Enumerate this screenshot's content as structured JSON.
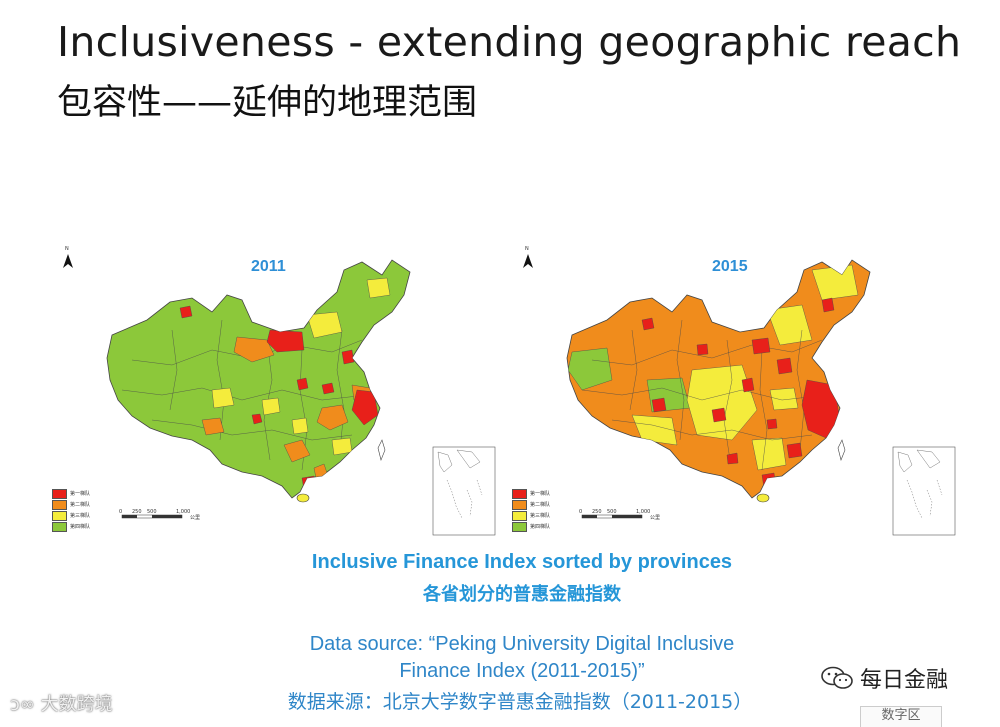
{
  "title": {
    "en": "Inclusiveness - extending geographic reach",
    "cn": "包容性——延伸的地理范围"
  },
  "maps": [
    {
      "year": "2011",
      "palette": {
        "tier1": "#e8201a",
        "tier2": "#f08c1c",
        "tier3": "#f4ec3c",
        "tier4": "#8cc83a"
      },
      "base_tier": "tier4",
      "description_levels": "mostly fourth tier (green), few first-tier (red) in east coast"
    },
    {
      "year": "2015",
      "palette": {
        "tier1": "#e8201a",
        "tier2": "#f08c1c",
        "tier3": "#f4ec3c",
        "tier4": "#8cc83a"
      },
      "base_tier": "tier2",
      "description_levels": "mostly second/third tier, many first-tier in east"
    }
  ],
  "legend": [
    {
      "color": "#e8201a",
      "label": "第一梯队"
    },
    {
      "color": "#f08c1c",
      "label": "第二梯队"
    },
    {
      "color": "#f4ec3c",
      "label": "第三梯队"
    },
    {
      "color": "#8cc83a",
      "label": "第四梯队"
    }
  ],
  "scale_bar": {
    "ticks": [
      "0",
      "250",
      "500",
      "1,000"
    ],
    "unit": "公里"
  },
  "north_label": "N",
  "caption": {
    "en": "Inclusive Finance Index sorted by provinces",
    "cn": "各省划分的普惠金融指数"
  },
  "source": {
    "line1": "Data source: “Peking University Digital Inclusive",
    "line2": "Finance Index (2011-2015)”",
    "line3": "数据来源：北京大学数字普惠金融指数（2011-2015）"
  },
  "watermark_left": "大数跨境",
  "wechat": {
    "icon": "wechat-icon",
    "label": "每日金融"
  },
  "corner_tab": "数字区"
}
